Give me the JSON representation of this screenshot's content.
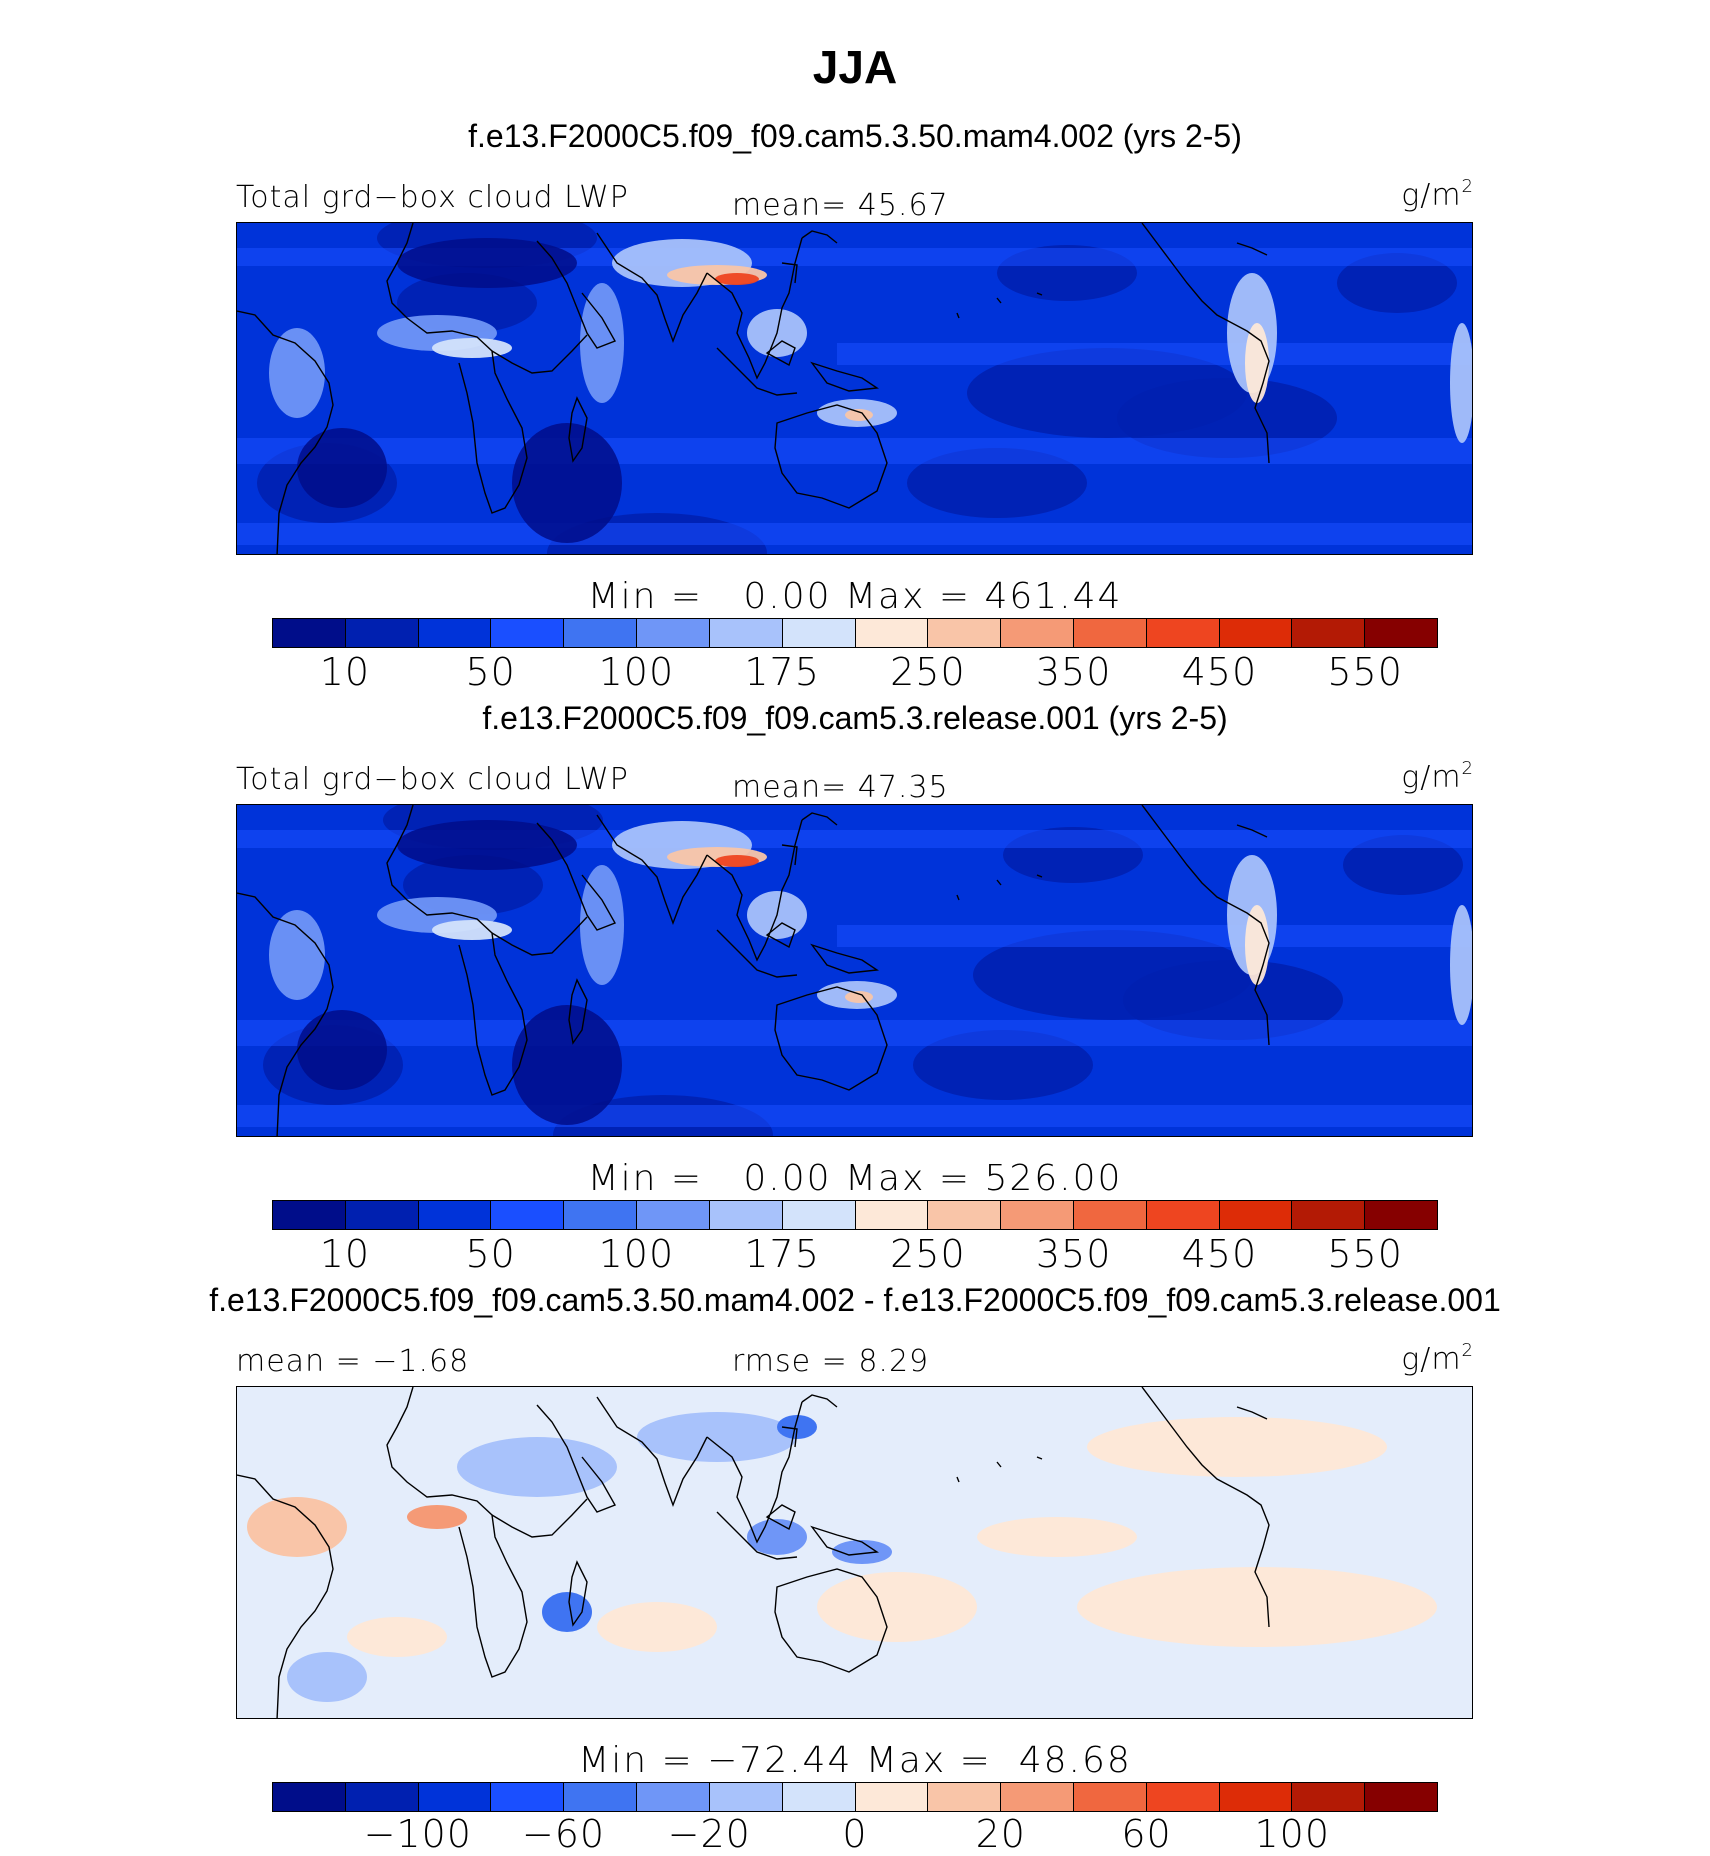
{
  "main_title": "JJA",
  "colors": {
    "abs_palette": [
      "#000d8a",
      "#0020b0",
      "#0033d9",
      "#1a4fff",
      "#3f74f2",
      "#6f96f7",
      "#a8c2fb",
      "#d3e3fb",
      "#fde8d8",
      "#f9c5a8",
      "#f59a76",
      "#f0673f",
      "#ee4520",
      "#dd2c07",
      "#b31a05",
      "#860000"
    ],
    "diff_palette": [
      "#000d8a",
      "#0020b0",
      "#0033d9",
      "#1a4fff",
      "#3f74f2",
      "#6f96f7",
      "#a8c2fb",
      "#d3e3fb",
      "#fde8d8",
      "#f9c5a8",
      "#f59a76",
      "#f0673f",
      "#ee4520",
      "#dd2c07",
      "#b31a05",
      "#860000"
    ]
  },
  "panels": [
    {
      "case_title": "f.e13.F2000C5.f09_f09.cam5.3.50.mam4.002 (yrs 2-5)",
      "left_label": "Total grd−box cloud LWP",
      "center_label": "mean=  45.67",
      "units": "g/m",
      "units_sup": "2",
      "minmax": "Min =   0.00 Max = 461.44",
      "colorbar_ticks": [
        "10",
        "50",
        "100",
        "175",
        "250",
        "350",
        "450",
        "550"
      ]
    },
    {
      "case_title": "f.e13.F2000C5.f09_f09.cam5.3.release.001 (yrs 2-5)",
      "left_label": "Total grd−box cloud LWP",
      "center_label": "mean=  47.35",
      "units": "g/m",
      "units_sup": "2",
      "minmax": "Min =   0.00 Max = 526.00",
      "colorbar_ticks": [
        "10",
        "50",
        "100",
        "175",
        "250",
        "350",
        "450",
        "550"
      ]
    },
    {
      "case_title": "f.e13.F2000C5.f09_f09.cam5.3.50.mam4.002 - f.e13.F2000C5.f09_f09.cam5.3.release.001",
      "left_label": "mean =  −1.68",
      "center_label": "rmse =   8.29",
      "units": "g/m",
      "units_sup": "2",
      "minmax": "Min = −72.44 Max =  48.68",
      "colorbar_ticks": [
        "−100",
        "−60",
        "−20",
        "0",
        "20",
        "60",
        "100"
      ]
    }
  ],
  "chart_data": [
    {
      "type": "heatmap",
      "title": "f.e13.F2000C5.f09_f09.cam5.3.50.mam4.002 (yrs 2-5)",
      "variable": "Total grd-box cloud LWP",
      "units": "g/m2",
      "mean": 45.67,
      "min": 0.0,
      "max": 461.44,
      "contour_levels": [
        10,
        25,
        50,
        75,
        100,
        125,
        150,
        175,
        200,
        250,
        300,
        350,
        400,
        450,
        500,
        550
      ]
    },
    {
      "type": "heatmap",
      "title": "f.e13.F2000C5.f09_f09.cam5.3.release.001 (yrs 2-5)",
      "variable": "Total grd-box cloud LWP",
      "units": "g/m2",
      "mean": 47.35,
      "min": 0.0,
      "max": 526.0,
      "contour_levels": [
        10,
        25,
        50,
        75,
        100,
        125,
        150,
        175,
        200,
        250,
        300,
        350,
        400,
        450,
        500,
        550
      ]
    },
    {
      "type": "heatmap",
      "title": "f.e13.F2000C5.f09_f09.cam5.3.50.mam4.002 - f.e13.F2000C5.f09_f09.cam5.3.release.001",
      "units": "g/m2",
      "mean": -1.68,
      "rmse": 8.29,
      "min": -72.44,
      "max": 48.68,
      "contour_levels": [
        -100,
        -80,
        -60,
        -40,
        -20,
        -10,
        -5,
        0,
        5,
        10,
        20,
        40,
        60,
        80,
        100
      ]
    }
  ]
}
